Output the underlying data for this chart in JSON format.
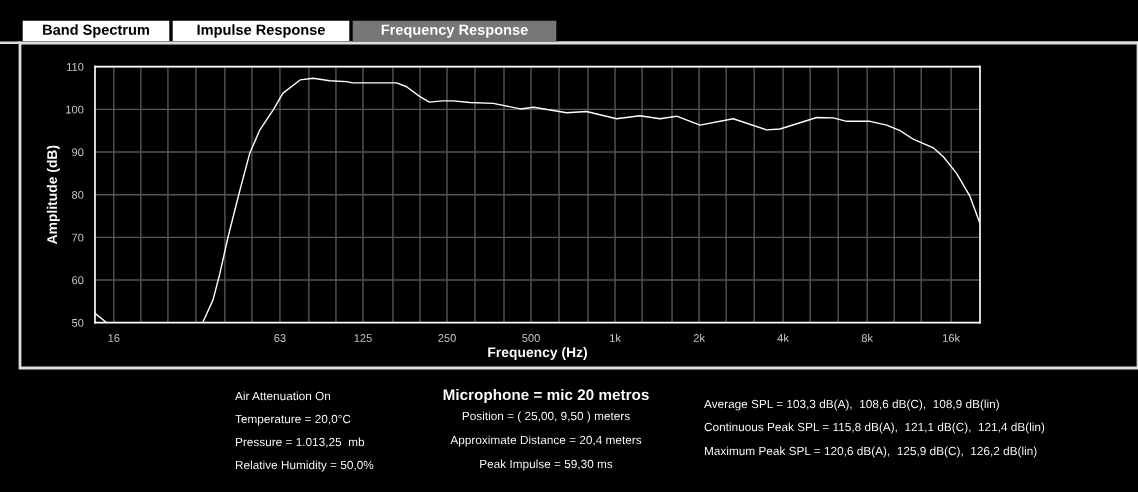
{
  "chart_data": {
    "type": "line",
    "xlabel": "Frequency (Hz)",
    "ylabel": "Amplitude (dB)",
    "x": [
      13.7,
      15.1,
      33.3,
      36.3,
      38.4,
      41.1,
      45.3,
      49.1,
      53.4,
      59.6,
      64.6,
      74.4,
      82.9,
      95,
      109,
      115,
      165,
      179,
      200,
      216,
      241,
      263,
      302,
      366,
      458,
      511,
      671,
      790,
      1013,
      1227,
      1448,
      1662,
      2015,
      2651,
      3490,
      3898,
      5277,
      6050,
      6760,
      8192,
      9400,
      10500,
      11710,
      13810,
      15000,
      16740,
      18690,
      20180
    ],
    "series": [
      {
        "color": "#ffffff",
        "values": [
          52.2,
          50,
          50,
          55.4,
          61.6,
          70.2,
          81.1,
          89.7,
          95.2,
          99.9,
          103.8,
          106.9,
          107.3,
          106.7,
          106.5,
          106.2,
          106.2,
          105.3,
          103,
          101.7,
          102,
          102,
          101.6,
          101.4,
          100.1,
          100.5,
          99.2,
          99.5,
          97.8,
          98.5,
          97.8,
          98.4,
          96.3,
          97.8,
          95.2,
          95.4,
          98.1,
          98,
          97.2,
          97.2,
          96.3,
          95,
          93,
          91,
          88.9,
          85,
          79.6,
          73.7
        ]
      }
    ],
    "log": "x",
    "xlim": [
      13.7,
      20300
    ],
    "ylim": [
      50,
      110
    ],
    "xticks": [
      16,
      {
        "value": 20,
        "label": null
      },
      {
        "value": 25,
        "label": null
      },
      {
        "value": 31.5,
        "label": null
      },
      {
        "value": 40,
        "label": null
      },
      {
        "value": 50,
        "label": null
      },
      63,
      {
        "value": 80,
        "label": null
      },
      {
        "value": 100,
        "label": null
      },
      125,
      {
        "value": 160,
        "label": null
      },
      {
        "value": 200,
        "label": null
      },
      250,
      {
        "value": 315,
        "label": null
      },
      {
        "value": 400,
        "label": null
      },
      500,
      {
        "value": 630,
        "label": null
      },
      {
        "value": 800,
        "label": null
      },
      {
        "value": 1000,
        "label": "1k"
      },
      {
        "value": 1250,
        "label": null
      },
      {
        "value": 1600,
        "label": null
      },
      {
        "value": 2000,
        "label": "2k"
      },
      {
        "value": 2500,
        "label": null
      },
      {
        "value": 3150,
        "label": null
      },
      {
        "value": 4000,
        "label": "4k"
      },
      {
        "value": 5000,
        "label": null
      },
      {
        "value": 6300,
        "label": null
      },
      {
        "value": 8000,
        "label": "8k"
      },
      {
        "value": 10000,
        "label": null
      },
      {
        "value": 12500,
        "label": null
      },
      {
        "value": 16000,
        "label": "16k"
      }
    ],
    "yticks": [
      50,
      60,
      70,
      80,
      90,
      100,
      110
    ],
    "grid": true,
    "line_style": "solid",
    "marker": "none",
    "annotations": [
      "Band Spectrum",
      "Impulse Response",
      "Frequency Response",
      "Air Attenuation On",
      "Temperature = 20,0°C",
      "Pressure = 1.013,25  mb",
      "Relative Humidity = 50,0%",
      "Microphone = mic 20 metros",
      "Position = ( 25,00, 9,50 ) meters",
      "Approximate Distance = 20,4 meters",
      "Peak Impulse = 59,30 ms",
      "Average SPL = 103,3 dB(A),  108,6 dB(C),  108,9 dB(lin)",
      "Continuous Peak SPL = 115,8 dB(A),  121,1 dB(C),  121,4 dB(lin)",
      "Maximum Peak SPL = 120,6 dB(A),  125,9 dB(C),  126,2 dB(lin)"
    ]
  }
}
